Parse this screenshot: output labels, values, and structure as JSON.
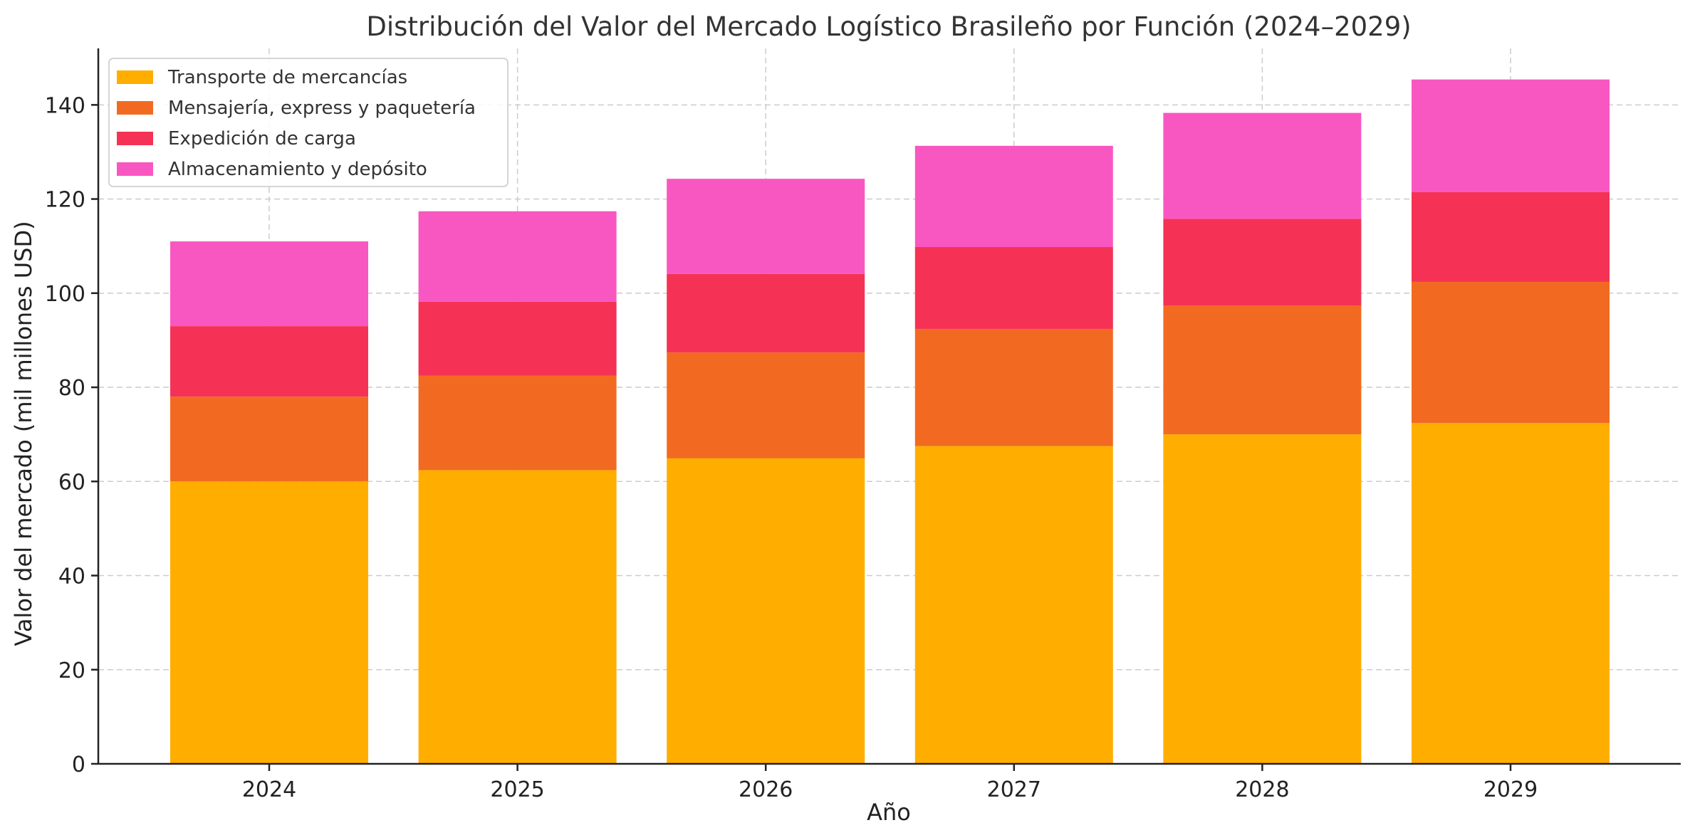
{
  "chart_data": {
    "type": "bar",
    "stacked": true,
    "title": "Distribución del Valor del Mercado Logístico Brasileño por Función (2024–2029)",
    "xlabel": "Año",
    "ylabel": "Valor del mercado (mil millones USD)",
    "categories": [
      "2024",
      "2025",
      "2026",
      "2027",
      "2028",
      "2029"
    ],
    "ylim": [
      0,
      152
    ],
    "yticks": [
      0,
      20,
      40,
      60,
      80,
      100,
      120,
      140
    ],
    "grid": true,
    "legend_position": "top-left",
    "series": [
      {
        "name": "Transporte de mercancías",
        "color": "#FFAE00",
        "values": [
          60.0,
          62.4,
          64.9,
          67.5,
          70.0,
          72.4
        ]
      },
      {
        "name": "Mensajería, express y paquetería",
        "color": "#F26A21",
        "values": [
          18.0,
          20.1,
          22.5,
          24.9,
          27.4,
          30.0
        ]
      },
      {
        "name": "Expedición de carga",
        "color": "#F53255",
        "values": [
          15.0,
          15.7,
          16.7,
          17.4,
          18.4,
          19.1
        ]
      },
      {
        "name": "Almacenamiento y depósito",
        "color": "#F857C1",
        "values": [
          18.0,
          19.2,
          20.2,
          21.5,
          22.5,
          23.9
        ]
      }
    ]
  }
}
